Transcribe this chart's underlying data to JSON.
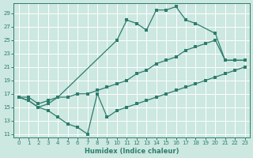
{
  "xlabel": "Humidex (Indice chaleur)",
  "bg_color": "#cce8e0",
  "grid_color": "#b8d8d0",
  "line_color": "#2e7d6e",
  "xlim": [
    -0.5,
    23.5
  ],
  "ylim": [
    10.5,
    30.5
  ],
  "xticks": [
    0,
    1,
    2,
    3,
    4,
    5,
    6,
    7,
    8,
    9,
    10,
    11,
    12,
    13,
    14,
    15,
    16,
    17,
    18,
    19,
    20,
    21,
    22,
    23
  ],
  "yticks": [
    11,
    13,
    15,
    17,
    19,
    21,
    23,
    25,
    27,
    29
  ],
  "line_upper_x": [
    0,
    1,
    2,
    3,
    4,
    10,
    11,
    12,
    13,
    14,
    15,
    16,
    17,
    18,
    20,
    21,
    22,
    23
  ],
  "line_upper_y": [
    16.5,
    16.0,
    15.0,
    15.5,
    16.5,
    25.0,
    28.0,
    27.5,
    26.5,
    29.5,
    29.5,
    30.0,
    28.0,
    27.5,
    26.0,
    22.0,
    22.0,
    22.0
  ],
  "line_mid_x": [
    0,
    1,
    2,
    3,
    4,
    5,
    6,
    7,
    8,
    9,
    10,
    11,
    12,
    13,
    14,
    15,
    16,
    17,
    18,
    19,
    20,
    21,
    22,
    23
  ],
  "line_mid_y": [
    16.5,
    16.5,
    15.5,
    16.0,
    16.5,
    16.5,
    17.0,
    17.0,
    17.5,
    18.0,
    18.5,
    19.0,
    20.0,
    20.5,
    21.5,
    22.0,
    22.5,
    23.5,
    24.0,
    24.5,
    25.0,
    22.0,
    22.0,
    22.0
  ],
  "line_bot_x": [
    0,
    1,
    2,
    3,
    4,
    5,
    6,
    7,
    8,
    9,
    10,
    11,
    12,
    13,
    14,
    15,
    16,
    17,
    18,
    19,
    20,
    21,
    22,
    23
  ],
  "line_bot_y": [
    16.5,
    16.0,
    15.0,
    14.5,
    13.5,
    12.5,
    12.0,
    11.0,
    17.0,
    13.5,
    14.5,
    15.0,
    15.5,
    16.0,
    16.5,
    17.0,
    17.5,
    18.0,
    18.5,
    19.0,
    19.5,
    20.0,
    20.5,
    21.0
  ],
  "marker_size": 2.5
}
